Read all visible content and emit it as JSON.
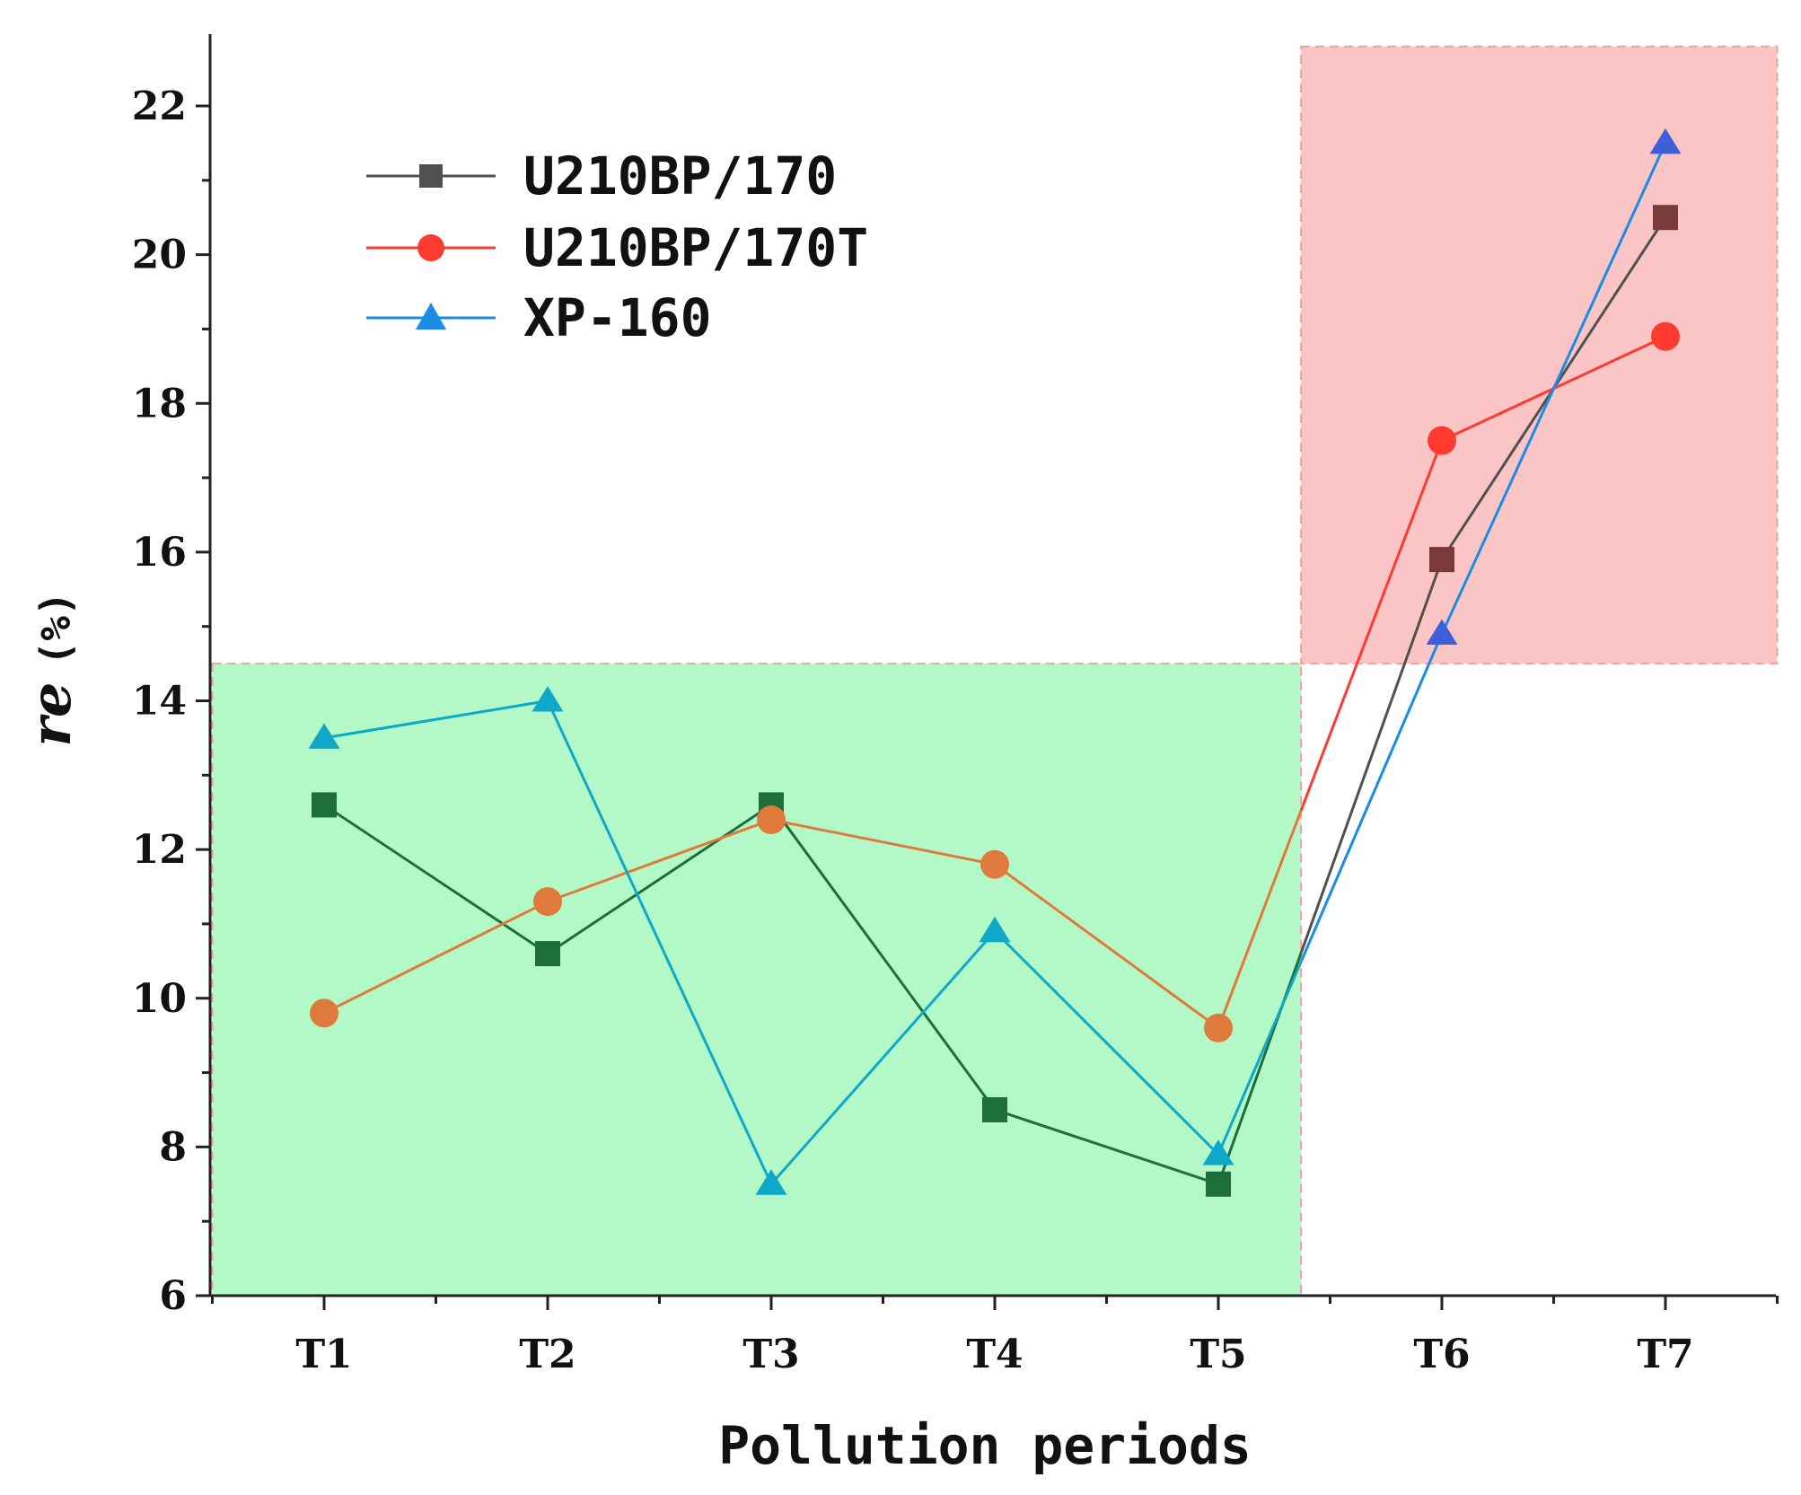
{
  "chart_data": {
    "type": "line",
    "title": "",
    "xlabel": "Pollution periods",
    "ylabel": "re",
    "ylabel_unit": "(%)",
    "categories": [
      "T1",
      "T2",
      "T3",
      "T4",
      "T5",
      "T6",
      "T7"
    ],
    "ylim": [
      6,
      23
    ],
    "yticks": [
      6,
      8,
      10,
      12,
      14,
      16,
      18,
      20,
      22
    ],
    "legend_position": "top-left",
    "series": [
      {
        "name": "U210BP/170",
        "marker": "square",
        "color": "#505050",
        "zone_color": "#1e6e3c",
        "values": [
          12.6,
          10.6,
          12.6,
          8.5,
          7.5,
          15.9,
          20.5
        ]
      },
      {
        "name": "U210BP/170T",
        "marker": "circle",
        "color": "#ff3b30",
        "zone_color": "#e07a3c",
        "values": [
          9.8,
          11.3,
          12.4,
          11.8,
          9.6,
          17.5,
          18.9
        ]
      },
      {
        "name": "XP-160",
        "marker": "triangle",
        "color": "#1a8ce6",
        "zone_color": "#10a8c8",
        "values": [
          13.5,
          14.0,
          7.5,
          10.9,
          7.9,
          14.9,
          21.5
        ]
      }
    ],
    "regions": [
      {
        "name": "green-zone",
        "color": "#b3f9c8",
        "x_from": 0.5,
        "x_to": 5.37,
        "y_from": 6,
        "y_to": 14.5
      },
      {
        "name": "red-zone",
        "color": "#fcc5c5",
        "x_from": 5.37,
        "x_to": 7.5,
        "y_from": 14.5,
        "y_to": 22.8
      }
    ]
  }
}
